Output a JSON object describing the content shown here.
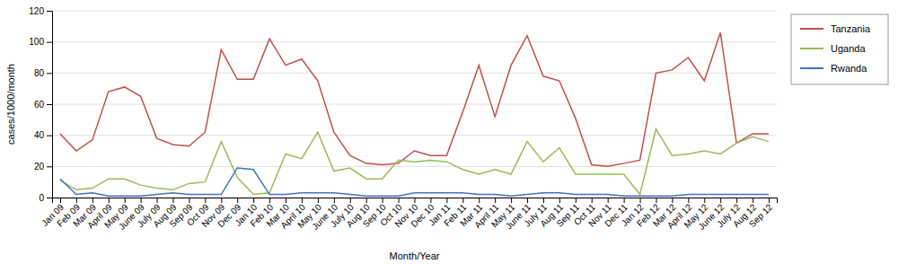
{
  "chart_data": {
    "type": "line",
    "xlabel": "Month/Year",
    "ylabel": "cases/1000/month",
    "categories": [
      "Jan 09",
      "Feb 09",
      "Mar 09",
      "April 09",
      "May 09",
      "June 09",
      "July 09",
      "Aug 09",
      "Sep 09",
      "Oct 09",
      "Nov 09",
      "Dec 09",
      "Jan 10",
      "Feb 10",
      "Mar 10",
      "April 10",
      "May 10",
      "June 10",
      "July 10",
      "Aug 10",
      "Sep 10",
      "Oct 10",
      "Nov 10",
      "Dec 10",
      "Jan 11",
      "Feb 11",
      "Mar 11",
      "April 11",
      "May 11",
      "June 11",
      "July 11",
      "Aug 11",
      "Sep 11",
      "Oct 11",
      "Nov 11",
      "Dec 11",
      "Jan 12",
      "Feb 12",
      "Mar 12",
      "April 12",
      "May 12",
      "June 12",
      "July 12",
      "Aug 12",
      "Sep 12"
    ],
    "series": [
      {
        "name": "Tanzania",
        "color": "#c0504d",
        "values": [
          41,
          30,
          37,
          68,
          71,
          65,
          38,
          34,
          33,
          42,
          95,
          76,
          76,
          102,
          85,
          89,
          75,
          42,
          27,
          22,
          21,
          22,
          30,
          27,
          27,
          55,
          85,
          52,
          85,
          104,
          78,
          75,
          51,
          21,
          20,
          22,
          24,
          80,
          82,
          90,
          75,
          106,
          35,
          41,
          41
        ]
      },
      {
        "name": "Uganda",
        "color": "#9bbb59",
        "values": [
          11,
          5,
          6,
          12,
          12,
          8,
          6,
          5,
          9,
          10,
          36,
          13,
          2,
          3,
          28,
          25,
          42,
          17,
          19,
          12,
          12,
          24,
          23,
          24,
          23,
          18,
          15,
          18,
          15,
          36,
          23,
          32,
          15,
          15,
          15,
          15,
          2,
          44,
          27,
          28,
          30,
          28,
          35,
          39,
          36
        ]
      },
      {
        "name": "Rwanda",
        "color": "#4472c4",
        "values": [
          12,
          2,
          3,
          1,
          1,
          1,
          2,
          3,
          2,
          2,
          2,
          19,
          18,
          2,
          2,
          3,
          3,
          3,
          2,
          1,
          1,
          1,
          3,
          3,
          3,
          3,
          2,
          2,
          1,
          2,
          3,
          3,
          2,
          2,
          2,
          1,
          1,
          1,
          1,
          2,
          2,
          2,
          2,
          2,
          2
        ]
      }
    ],
    "ylim": [
      0,
      120
    ],
    "yticks": [
      0,
      20,
      40,
      60,
      80,
      100,
      120
    ],
    "grid": true,
    "legend": "right"
  }
}
